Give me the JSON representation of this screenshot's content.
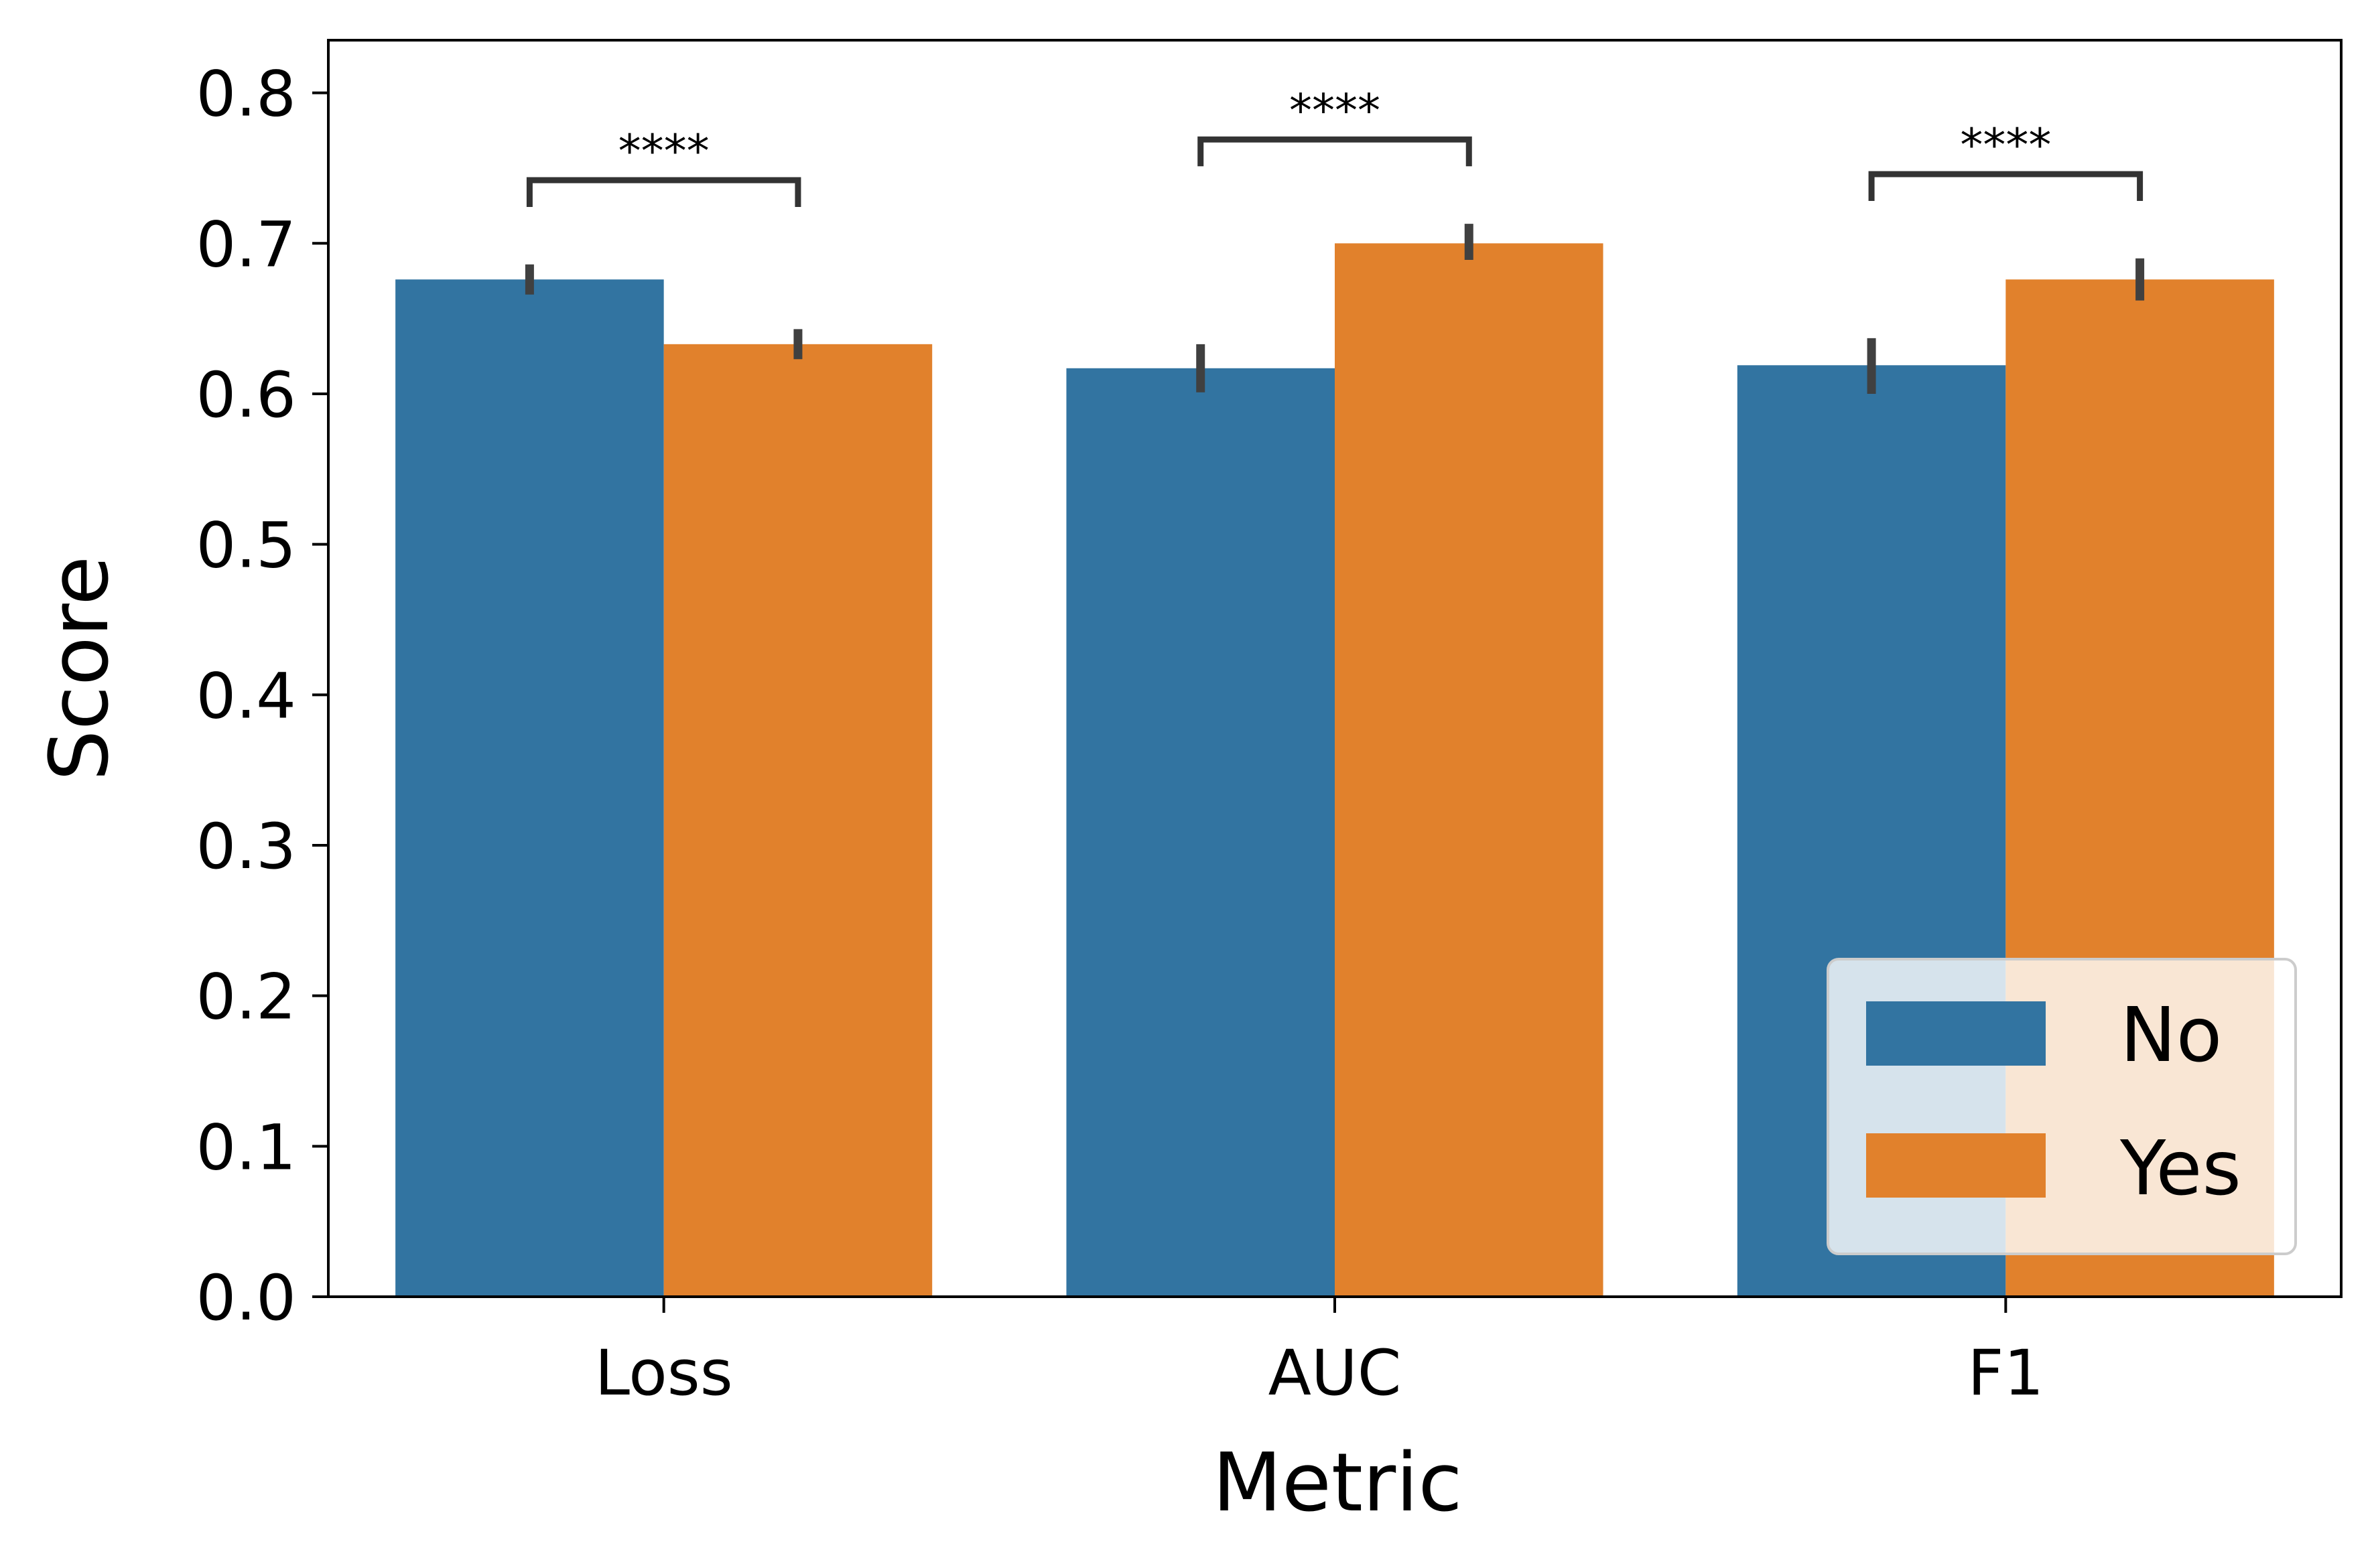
{
  "chart_data": {
    "type": "bar",
    "title": "",
    "xlabel": "Metric",
    "ylabel": "Score",
    "categories": [
      "Loss",
      "AUC",
      "F1"
    ],
    "ylim": [
      0,
      0.835
    ],
    "yticks": [
      "0.0",
      "0.1",
      "0.2",
      "0.3",
      "0.4",
      "0.5",
      "0.6",
      "0.7",
      "0.8"
    ],
    "series": [
      {
        "name": "No",
        "color": "#3274a1",
        "values": [
          0.676,
          0.617,
          0.619
        ],
        "err_low": [
          0.666,
          0.601,
          0.6
        ],
        "err_high": [
          0.686,
          0.633,
          0.637
        ]
      },
      {
        "name": "Yes",
        "color": "#e1812c",
        "values": [
          0.633,
          0.7,
          0.676
        ],
        "err_low": [
          0.623,
          0.689,
          0.662
        ],
        "err_high": [
          0.643,
          0.713,
          0.69
        ]
      }
    ],
    "significance": [
      {
        "category": "Loss",
        "label": "****",
        "y": 0.742
      },
      {
        "category": "AUC",
        "label": "****",
        "y": 0.769
      },
      {
        "category": "F1",
        "label": "****",
        "y": 0.746
      }
    ],
    "legend": {
      "position": "lower-right",
      "entries": [
        "No",
        "Yes"
      ]
    },
    "grid": false
  }
}
